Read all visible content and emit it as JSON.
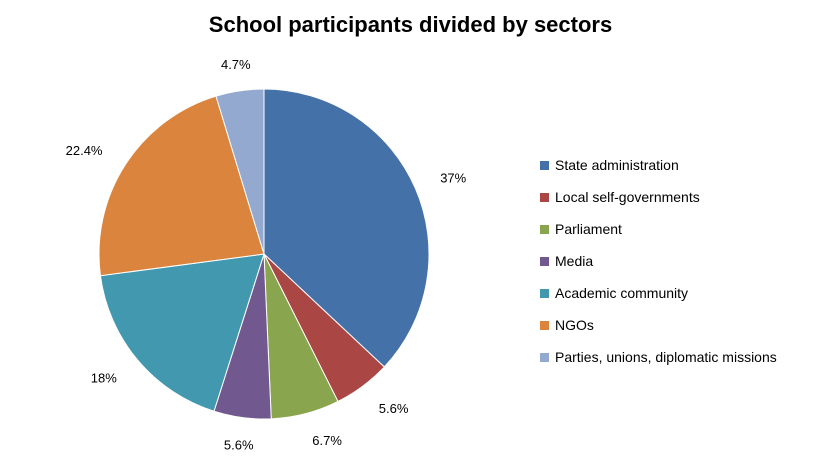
{
  "chart_data": {
    "type": "pie",
    "title": "School participants divided by sectors",
    "slices": [
      {
        "label": "State administration",
        "value": 37,
        "value_label": "37%",
        "color": "#4571A9"
      },
      {
        "label": "Local self-governments",
        "value": 5.6,
        "value_label": "5.6%",
        "color": "#AA4643"
      },
      {
        "label": "Parliament",
        "value": 6.7,
        "value_label": "6.7%",
        "color": "#89A54E"
      },
      {
        "label": "Media",
        "value": 5.6,
        "value_label": "5.6%",
        "color": "#71588F"
      },
      {
        "label": "Academic community",
        "value": 18,
        "value_label": "18%",
        "color": "#4198AF"
      },
      {
        "label": "NGOs",
        "value": 22.4,
        "value_label": "22.4%",
        "color": "#DB843D"
      },
      {
        "label": "Parties, unions, diplomatic missions",
        "value": 4.7,
        "value_label": "4.7%",
        "color": "#93A9CF"
      }
    ],
    "legend_position": "right"
  }
}
